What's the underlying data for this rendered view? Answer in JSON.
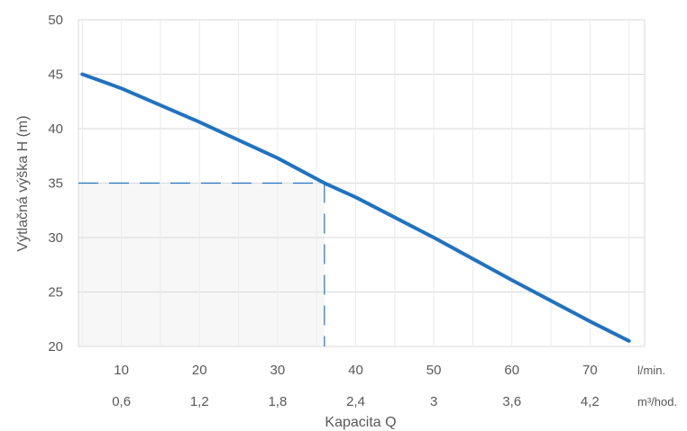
{
  "chart_data": {
    "type": "line",
    "title": "",
    "xlabel": "Kapacita Q",
    "ylabel": "Výtlačná výška H (m)",
    "ylim": [
      20,
      50
    ],
    "yticks": [
      20,
      25,
      30,
      35,
      40,
      45,
      50
    ],
    "xlim": [
      4.5,
      77
    ],
    "xticks_lmin": [
      10,
      20,
      30,
      40,
      50,
      60,
      70
    ],
    "xticks_lmin_labels": [
      "10",
      "20",
      "30",
      "40",
      "50",
      "60",
      "70"
    ],
    "xticks_m3h_labels": [
      "0,6",
      "1,2",
      "1,8",
      "2,4",
      "3",
      "3,6",
      "4,2"
    ],
    "x_unit_primary": "l/min.",
    "x_unit_secondary": "m³/hod.",
    "grid": true,
    "series": [
      {
        "x": [
          5,
          10,
          20,
          30,
          36,
          40,
          50,
          60,
          70,
          75
        ],
        "y": [
          45,
          43.7,
          40.6,
          37.3,
          35,
          33.7,
          30,
          26.1,
          22.3,
          20.5
        ],
        "color": "#2172c1"
      }
    ],
    "operating_point": {
      "x": 36,
      "y": 35,
      "color": "#2172c1",
      "shade": "#f7f7f7"
    }
  }
}
